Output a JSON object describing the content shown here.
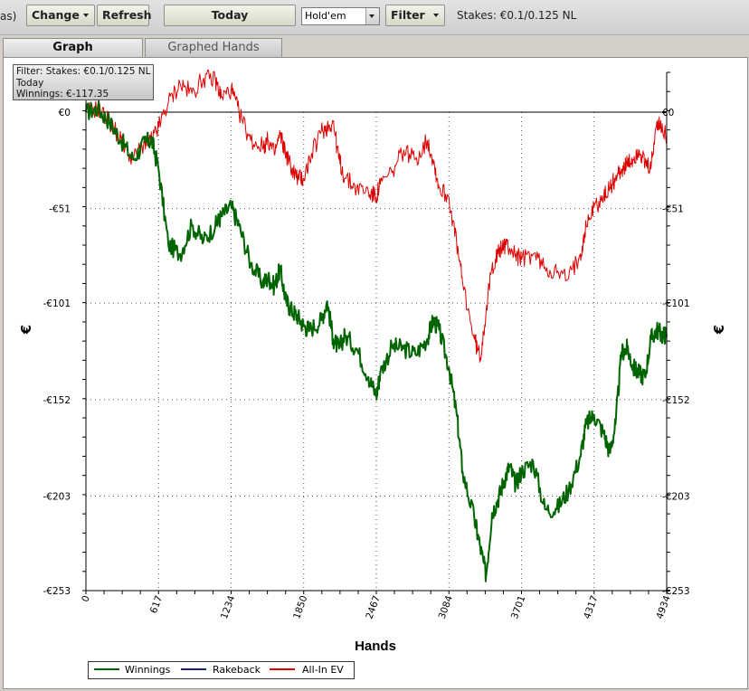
{
  "toolbar": {
    "prefix_text": "as)",
    "change_label": "Change",
    "refresh_label": "Refresh",
    "today_label": "Today",
    "game_select_value": "Hold'em",
    "filter_label": "Filter",
    "stakes_text": "Stakes: €0.1/0.125 NL"
  },
  "tabs": [
    {
      "label": "Graph",
      "active": true
    },
    {
      "label": "Graphed Hands",
      "active": false
    }
  ],
  "infobox": {
    "filter_line": "Filter: Stakes: €0.1/0.125 NL",
    "period_line": "Today",
    "winnings_line": "Winnings: €-117.35"
  },
  "legend": {
    "winnings": "Winnings",
    "rakeback": "Rakeback",
    "allin": "All-In EV"
  },
  "chart_data": {
    "type": "line",
    "xlabel": "Hands",
    "ylabel": "€",
    "xlim": [
      0,
      4934
    ],
    "ylim": [
      -253,
      0
    ],
    "x_ticks": [
      "0",
      "617",
      "1234",
      "1850",
      "2467",
      "3084",
      "3701",
      "4317",
      "4934"
    ],
    "y_ticks": [
      "€0",
      "-€51",
      "-€101",
      "-€152",
      "-€203",
      "-€253"
    ],
    "grid": true,
    "legend_position": "bottom-left",
    "colors": {
      "winnings": "#006400",
      "rakeback": "#1a237e",
      "allin": "#dd0000"
    },
    "series": [
      {
        "name": "Winnings",
        "color": "#006400",
        "x": [
          0,
          100,
          200,
          300,
          400,
          500,
          560,
          617,
          700,
          800,
          900,
          1000,
          1100,
          1150,
          1234,
          1300,
          1400,
          1500,
          1550,
          1600,
          1650,
          1700,
          1750,
          1800,
          1850,
          1900,
          2000,
          2050,
          2100,
          2150,
          2200,
          2300,
          2400,
          2467,
          2500,
          2600,
          2700,
          2800,
          2900,
          2950,
          3000,
          3084,
          3150,
          3200,
          3300,
          3350,
          3400,
          3450,
          3500,
          3550,
          3600,
          3650,
          3700,
          3800,
          3900,
          4000,
          4100,
          4200,
          4250,
          4317,
          4400,
          4450,
          4500,
          4550,
          4600,
          4650,
          4700,
          4750,
          4800,
          4850,
          4900,
          4934
        ],
        "y": [
          0,
          2,
          -5,
          -15,
          -25,
          -16,
          -15,
          -30,
          -70,
          -75,
          -60,
          -68,
          -60,
          -55,
          -50,
          -60,
          -80,
          -90,
          -88,
          -92,
          -83,
          -100,
          -105,
          -108,
          -113,
          -115,
          -110,
          -100,
          -120,
          -125,
          -118,
          -125,
          -140,
          -150,
          -138,
          -124,
          -125,
          -128,
          -120,
          -110,
          -115,
          -135,
          -160,
          -190,
          -215,
          -230,
          -245,
          -212,
          -205,
          -195,
          -187,
          -197,
          -190,
          -185,
          -210,
          -210,
          -200,
          -182,
          -165,
          -160,
          -170,
          -180,
          -165,
          -127,
          -125,
          -135,
          -138,
          -140,
          -120,
          -115,
          -118,
          -117.35
        ]
      },
      {
        "name": "Rakeback",
        "color": "#1a237e",
        "x": [],
        "y": []
      },
      {
        "name": "All-In EV",
        "color": "#dd0000",
        "x": [
          0,
          100,
          200,
          300,
          400,
          500,
          560,
          617,
          700,
          800,
          900,
          1000,
          1100,
          1150,
          1234,
          1300,
          1400,
          1500,
          1550,
          1600,
          1650,
          1700,
          1750,
          1800,
          1850,
          1900,
          2000,
          2050,
          2100,
          2150,
          2200,
          2300,
          2400,
          2467,
          2500,
          2600,
          2700,
          2800,
          2900,
          2950,
          3000,
          3084,
          3150,
          3200,
          3300,
          3350,
          3400,
          3450,
          3500,
          3550,
          3600,
          3650,
          3700,
          3800,
          3900,
          4000,
          4100,
          4200,
          4250,
          4317,
          4400,
          4450,
          4500,
          4550,
          4600,
          4650,
          4700,
          4750,
          4800,
          4850,
          4900,
          4934
        ],
        "y": [
          0,
          2,
          -5,
          -15,
          -25,
          -16,
          -15,
          -8,
          5,
          15,
          10,
          18,
          17,
          8,
          12,
          0,
          -15,
          -18,
          -15,
          -22,
          -12,
          -22,
          -30,
          -35,
          -35,
          -25,
          -10,
          -8,
          -5,
          -25,
          -35,
          -40,
          -42,
          -45,
          -38,
          -32,
          -20,
          -25,
          -15,
          -25,
          -40,
          -45,
          -70,
          -90,
          -120,
          -130,
          -105,
          -82,
          -75,
          -70,
          -72,
          -75,
          -78,
          -75,
          -82,
          -85,
          -88,
          -75,
          -60,
          -50,
          -45,
          -40,
          -35,
          -30,
          -28,
          -25,
          -20,
          -28,
          -30,
          -5,
          -10,
          -12
        ]
      }
    ]
  }
}
